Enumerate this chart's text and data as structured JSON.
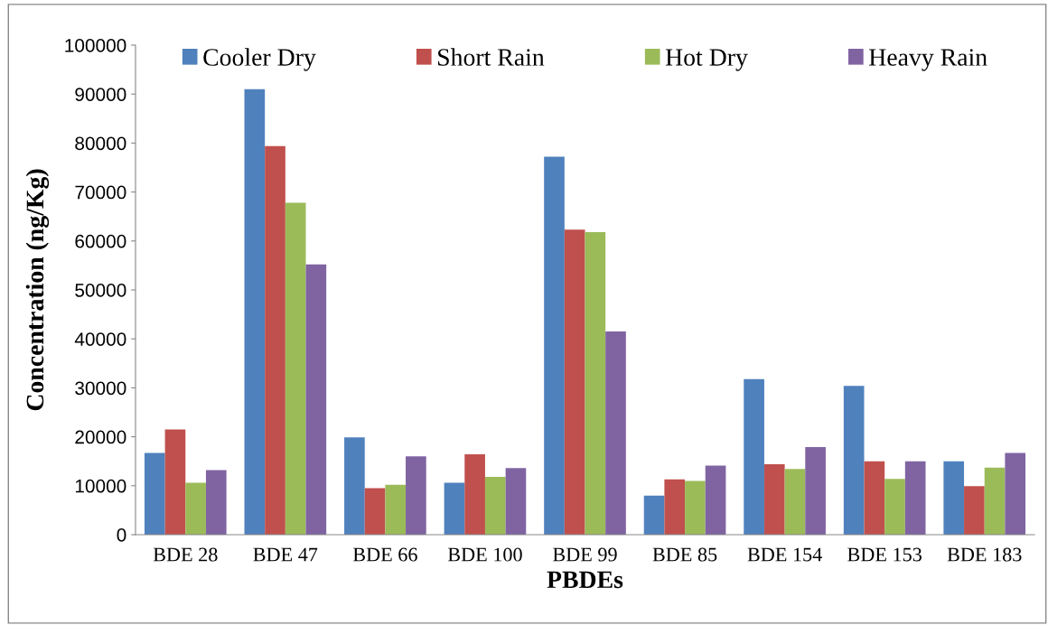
{
  "chart_data": {
    "type": "bar",
    "xlabel": "PBDEs",
    "ylabel": "Concentration (ng/Kg)",
    "categories": [
      "BDE 28",
      "BDE 47",
      "BDE 66",
      "BDE 100",
      "BDE 99",
      "BDE 85",
      "BDE 154",
      "BDE 153",
      "BDE 183"
    ],
    "series": [
      {
        "name": "Cooler Dry",
        "color": "#4f81bd",
        "values": [
          16700,
          91000,
          19900,
          10600,
          77200,
          8000,
          31800,
          30400,
          15000
        ]
      },
      {
        "name": "Short Rain",
        "color": "#c0504d",
        "values": [
          21500,
          79400,
          9500,
          16400,
          62300,
          11300,
          14400,
          15000,
          9900
        ]
      },
      {
        "name": "Hot Dry",
        "color": "#9bbb59",
        "values": [
          10600,
          67800,
          10200,
          11800,
          61800,
          11000,
          13400,
          11400,
          13700
        ]
      },
      {
        "name": "Heavy Rain",
        "color": "#8064a2",
        "values": [
          13200,
          55200,
          16000,
          13600,
          41500,
          14100,
          17900,
          15000,
          16700
        ]
      }
    ],
    "ylim": [
      0,
      100000
    ],
    "yticks": [
      0,
      10000,
      20000,
      30000,
      40000,
      50000,
      60000,
      70000,
      80000,
      90000,
      100000
    ],
    "grid": false,
    "legend": "top"
  }
}
